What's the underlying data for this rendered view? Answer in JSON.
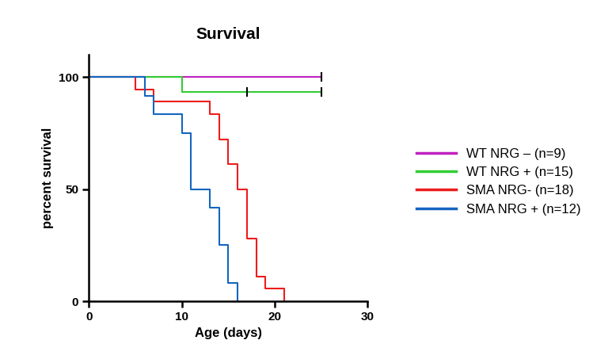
{
  "chart_data": {
    "type": "step",
    "title": "Survival",
    "x_label": "Age (days)",
    "y_label": "percent survival",
    "xlim": [
      0,
      30
    ],
    "xticks": [
      0,
      10,
      20,
      30
    ],
    "ylim": [
      0,
      110
    ],
    "yticks": [
      0,
      50,
      100
    ],
    "legend": "center right",
    "grid": false,
    "series": [
      {
        "name": "WT NRG – (n=9)",
        "color": "#c020c0",
        "marker": "|",
        "x": [
          0,
          25
        ],
        "values": [
          100,
          100
        ],
        "censored": [
          25
        ]
      },
      {
        "name": "WT NRG + (n=15)",
        "color": "#33cc33",
        "marker": "|",
        "x": [
          0,
          10,
          25
        ],
        "values": [
          100,
          93.3,
          93.3
        ],
        "censored": [
          17,
          25
        ]
      },
      {
        "name": "SMA NRG- (n=18)",
        "color": "#ee1c1c",
        "x": [
          0,
          5,
          7,
          13,
          14,
          15,
          16,
          17,
          18,
          19,
          21
        ],
        "values": [
          100,
          94.4,
          88.9,
          83.3,
          72.2,
          61.1,
          50,
          27.8,
          11.1,
          5.6,
          0
        ]
      },
      {
        "name": "SMA NRG + (n=12)",
        "color": "#1565c0",
        "x": [
          0,
          6,
          7,
          10,
          11,
          13,
          14,
          15,
          16
        ],
        "values": [
          100,
          91.7,
          83.3,
          75,
          50,
          41.7,
          25,
          8.3,
          0
        ]
      }
    ]
  }
}
